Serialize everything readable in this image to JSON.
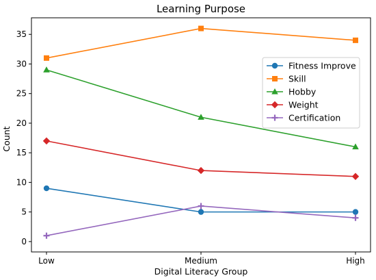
{
  "chart_data": {
    "type": "line",
    "title": "Learning Purpose",
    "xlabel": "Digital Literacy Group",
    "ylabel": "Count",
    "categories": [
      "Low",
      "Medium",
      "High"
    ],
    "ylim": [
      -1.75,
      37.8
    ],
    "yticks": [
      0,
      5,
      10,
      15,
      20,
      25,
      30,
      35
    ],
    "grid": false,
    "legend_position": "upper right",
    "series": [
      {
        "name": "Fitness Improve",
        "values": [
          9,
          5,
          5
        ],
        "color": "#1f77b4",
        "marker": "circle"
      },
      {
        "name": "Skill",
        "values": [
          31,
          36,
          34
        ],
        "color": "#ff7f0e",
        "marker": "square"
      },
      {
        "name": "Hobby",
        "values": [
          29,
          21,
          16
        ],
        "color": "#2ca02c",
        "marker": "triangle"
      },
      {
        "name": "Weight",
        "values": [
          17,
          12,
          11
        ],
        "color": "#d62728",
        "marker": "diamond"
      },
      {
        "name": "Certification",
        "values": [
          1,
          6,
          4
        ],
        "color": "#9467bd",
        "marker": "plus"
      }
    ]
  }
}
